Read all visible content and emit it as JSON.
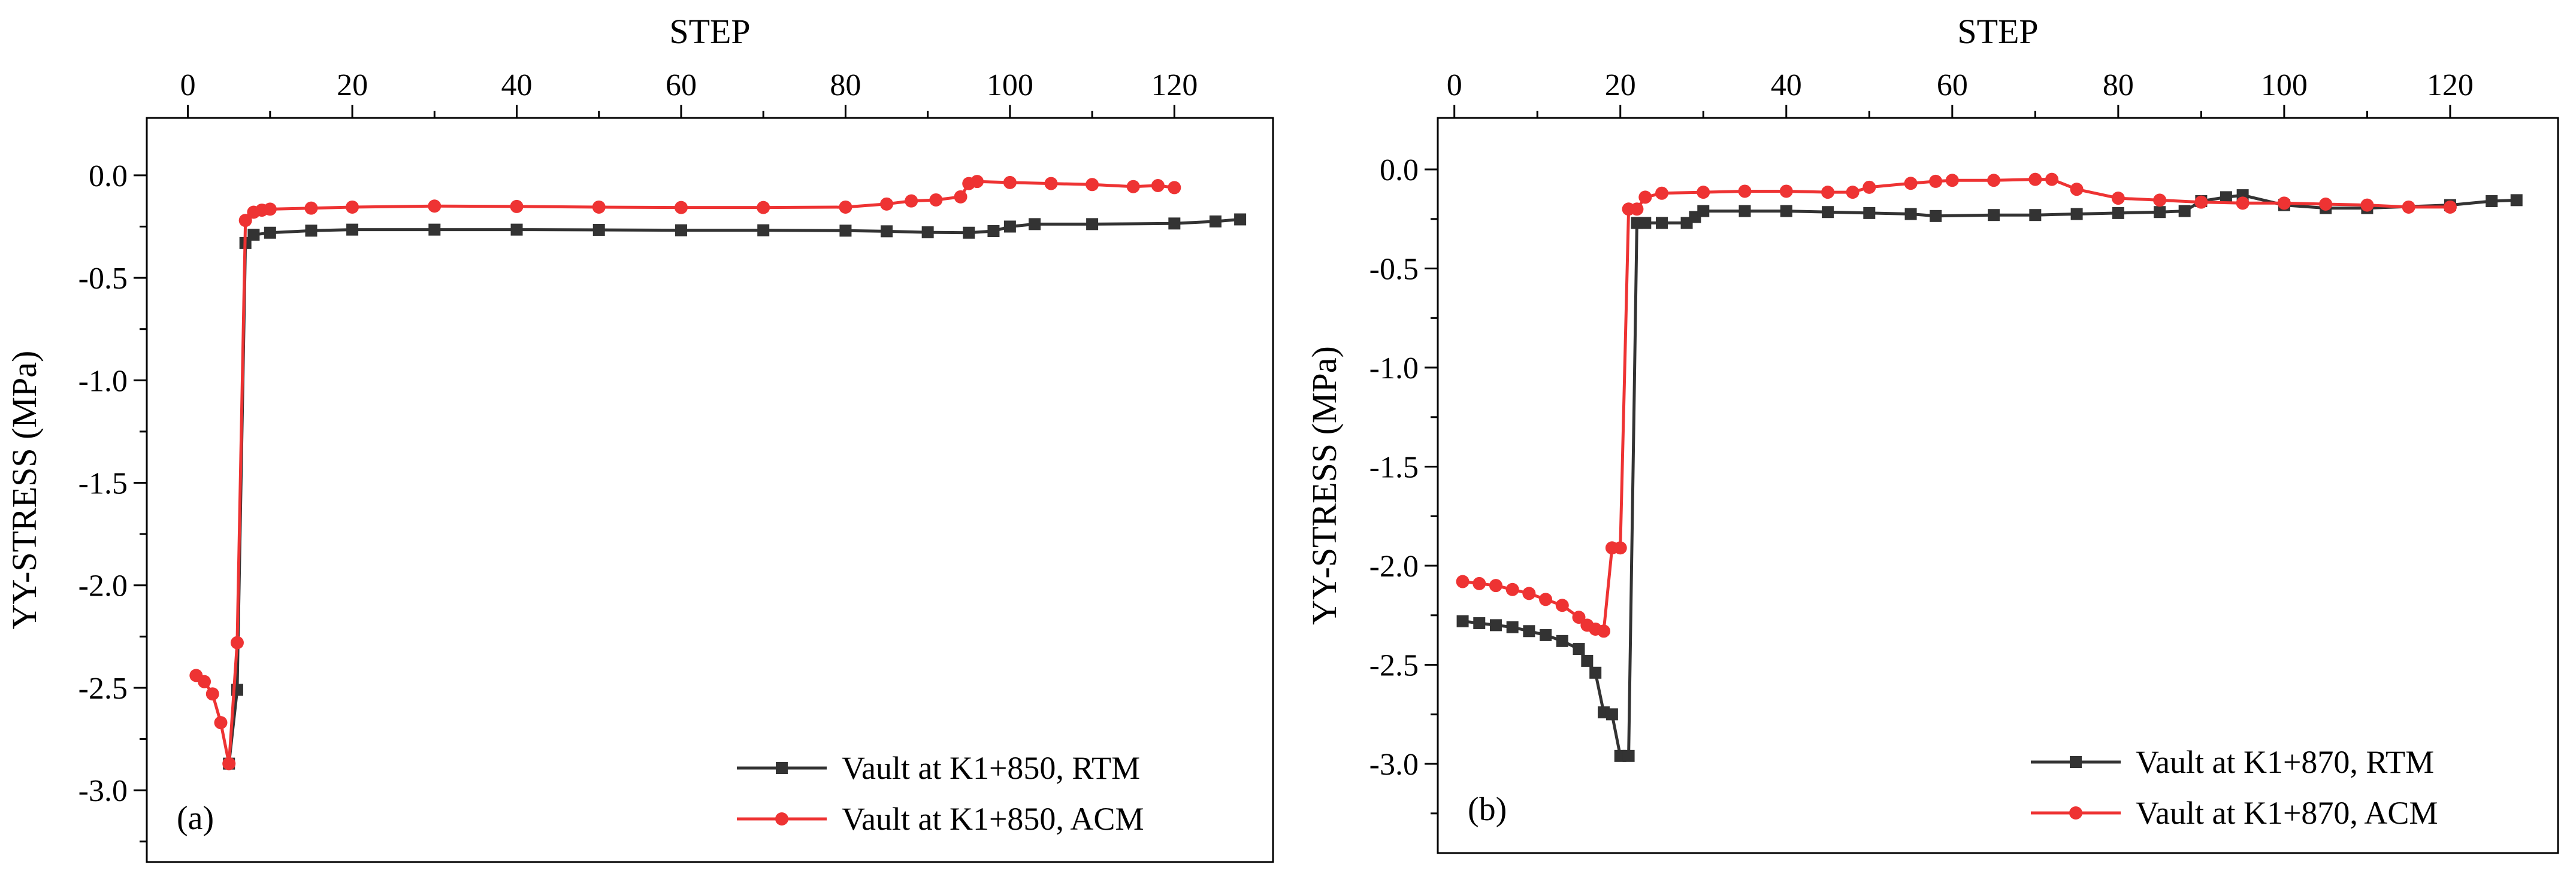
{
  "chart_data": [
    {
      "type": "line",
      "panel_label": "(a)",
      "xlabel": "STEP",
      "ylabel": "YY-STRESS (MPa)",
      "xlim": [
        -5,
        132
      ],
      "ylim": [
        -3.35,
        0.28
      ],
      "x_ticks": [
        0,
        20,
        40,
        60,
        80,
        100,
        120
      ],
      "y_ticks": [
        0.0,
        -0.5,
        -1.0,
        -1.5,
        -2.0,
        -2.5,
        -3.0
      ],
      "x_tick_labels": [
        "0",
        "20",
        "40",
        "60",
        "80",
        "100",
        "120"
      ],
      "y_tick_labels": [
        "0.0",
        "-0.5",
        "-1.0",
        "-1.5",
        "-2.0",
        "-2.5",
        "-3.0"
      ],
      "legend_position": "bottom-right",
      "series": [
        {
          "name": "Vault at K1+850, RTM",
          "color": "#333333",
          "marker": "square",
          "x": [
            5,
            6,
            7,
            8,
            10,
            15,
            20,
            30,
            40,
            50,
            60,
            70,
            80,
            85,
            90,
            95,
            98,
            100,
            103,
            110,
            120,
            125,
            128
          ],
          "y": [
            -2.87,
            -2.51,
            -0.33,
            -0.29,
            -0.28,
            -0.27,
            -0.265,
            -0.265,
            -0.265,
            -0.266,
            -0.268,
            -0.268,
            -0.27,
            -0.273,
            -0.278,
            -0.28,
            -0.272,
            -0.25,
            -0.238,
            -0.238,
            -0.235,
            -0.225,
            -0.215
          ]
        },
        {
          "name": "Vault at K1+850, ACM",
          "color": "#ee3333",
          "marker": "circle",
          "x": [
            1,
            2,
            3,
            4,
            5,
            6,
            7,
            8,
            9,
            10,
            15,
            20,
            30,
            40,
            50,
            60,
            70,
            80,
            85,
            88,
            91,
            94,
            95,
            96,
            100,
            105,
            110,
            115,
            118,
            120
          ],
          "y": [
            -2.44,
            -2.47,
            -2.53,
            -2.67,
            -2.87,
            -2.28,
            -0.22,
            -0.18,
            -0.17,
            -0.165,
            -0.16,
            -0.155,
            -0.15,
            -0.152,
            -0.155,
            -0.157,
            -0.157,
            -0.155,
            -0.14,
            -0.125,
            -0.12,
            -0.105,
            -0.04,
            -0.03,
            -0.035,
            -0.04,
            -0.045,
            -0.055,
            -0.05,
            -0.06
          ]
        }
      ]
    },
    {
      "type": "line",
      "panel_label": "(b)",
      "xlabel": "STEP",
      "ylabel": "YY-STRESS (MPa)",
      "xlim": [
        -2,
        133
      ],
      "ylim": [
        -3.45,
        0.26
      ],
      "x_ticks": [
        0,
        20,
        40,
        60,
        80,
        100,
        120
      ],
      "y_ticks": [
        0.0,
        -0.5,
        -1.0,
        -1.5,
        -2.0,
        -2.5,
        -3.0
      ],
      "x_tick_labels": [
        "0",
        "20",
        "40",
        "60",
        "80",
        "100",
        "120"
      ],
      "y_tick_labels": [
        "0.0",
        "-0.5",
        "-1.0",
        "-1.5",
        "-2.0",
        "-2.5",
        "-3.0"
      ],
      "legend_position": "bottom-right",
      "series": [
        {
          "name": "Vault at K1+870, RTM",
          "color": "#333333",
          "marker": "square",
          "x": [
            1,
            3,
            5,
            7,
            9,
            11,
            13,
            15,
            16,
            17,
            18,
            19,
            20,
            21,
            22,
            23,
            25,
            28,
            29,
            30,
            35,
            40,
            45,
            50,
            55,
            58,
            65,
            70,
            75,
            80,
            85,
            88,
            90,
            93,
            95,
            100,
            105,
            110,
            120,
            125,
            128
          ],
          "y": [
            -2.28,
            -2.29,
            -2.3,
            -2.31,
            -2.33,
            -2.35,
            -2.38,
            -2.42,
            -2.48,
            -2.54,
            -2.74,
            -2.75,
            -2.96,
            -2.96,
            -0.27,
            -0.27,
            -0.27,
            -0.27,
            -0.24,
            -0.21,
            -0.21,
            -0.21,
            -0.215,
            -0.22,
            -0.225,
            -0.235,
            -0.23,
            -0.23,
            -0.225,
            -0.22,
            -0.215,
            -0.21,
            -0.16,
            -0.14,
            -0.13,
            -0.18,
            -0.195,
            -0.195,
            -0.18,
            -0.16,
            -0.155
          ]
        },
        {
          "name": "Vault at K1+870, ACM",
          "color": "#ee3333",
          "marker": "circle",
          "x": [
            1,
            3,
            5,
            7,
            9,
            11,
            13,
            15,
            16,
            17,
            18,
            19,
            20,
            21,
            22,
            23,
            25,
            30,
            35,
            40,
            45,
            48,
            50,
            55,
            58,
            60,
            65,
            70,
            72,
            75,
            80,
            85,
            90,
            95,
            100,
            105,
            110,
            115,
            120
          ],
          "y": [
            -2.08,
            -2.09,
            -2.1,
            -2.12,
            -2.14,
            -2.17,
            -2.2,
            -2.26,
            -2.3,
            -2.32,
            -2.33,
            -1.91,
            -1.91,
            -0.2,
            -0.2,
            -0.14,
            -0.12,
            -0.115,
            -0.11,
            -0.11,
            -0.115,
            -0.115,
            -0.09,
            -0.07,
            -0.06,
            -0.055,
            -0.055,
            -0.05,
            -0.05,
            -0.1,
            -0.145,
            -0.155,
            -0.165,
            -0.17,
            -0.17,
            -0.175,
            -0.18,
            -0.19,
            -0.19
          ]
        }
      ]
    }
  ]
}
